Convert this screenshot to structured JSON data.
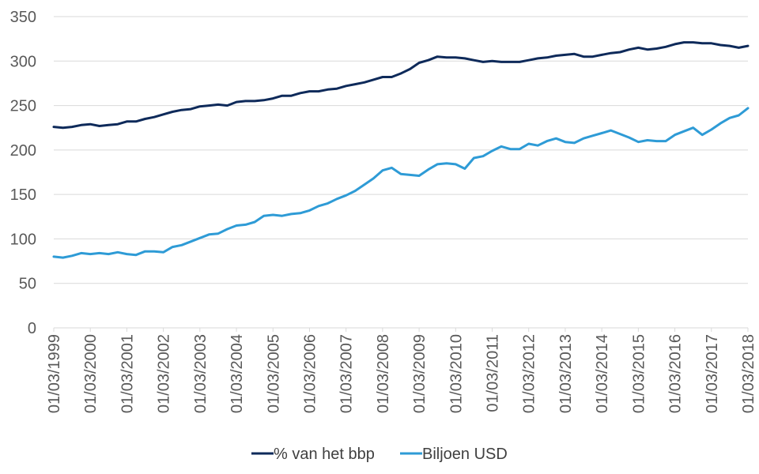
{
  "chart_data": {
    "type": "line",
    "title": "",
    "xlabel": "",
    "ylabel": "",
    "ylim": [
      0,
      350
    ],
    "yticks": [
      0,
      50,
      100,
      150,
      200,
      250,
      300,
      350
    ],
    "xticks": [
      "01/03/1999",
      "01/03/2000",
      "01/03/2001",
      "01/03/2002",
      "01/03/2003",
      "01/03/2004",
      "01/03/2005",
      "01/03/2006",
      "01/03/2007",
      "01/03/2008",
      "01/03/2009",
      "01/03/2010",
      "01/03/2011",
      "01/03/2012",
      "01/03/2013",
      "01/03/2014",
      "01/03/2015",
      "01/03/2016",
      "01/03/2017",
      "01/03/2018"
    ],
    "grid": true,
    "legend_position": "bottom",
    "x_start_year": 1999,
    "x_end_year": 2018,
    "series": [
      {
        "name": "% van het bbp",
        "color": "#0e2a5a",
        "values": [
          226,
          225,
          226,
          228,
          229,
          227,
          228,
          229,
          232,
          232,
          235,
          237,
          240,
          243,
          245,
          246,
          249,
          250,
          251,
          250,
          254,
          255,
          255,
          256,
          258,
          261,
          261,
          264,
          266,
          266,
          268,
          269,
          272,
          274,
          276,
          279,
          282,
          282,
          286,
          291,
          298,
          301,
          305,
          304,
          304,
          303,
          301,
          299,
          300,
          299,
          299,
          299,
          301,
          303,
          304,
          306,
          307,
          308,
          305,
          305,
          307,
          309,
          310,
          313,
          315,
          313,
          314,
          316,
          319,
          321,
          321,
          320,
          320,
          318,
          317,
          315,
          317
        ]
      },
      {
        "name": "Biljoen USD",
        "color": "#2e9bd6",
        "values": [
          80,
          79,
          81,
          84,
          83,
          84,
          83,
          85,
          83,
          82,
          86,
          86,
          85,
          91,
          93,
          97,
          101,
          105,
          106,
          111,
          115,
          116,
          119,
          126,
          127,
          126,
          128,
          129,
          132,
          137,
          140,
          145,
          149,
          154,
          161,
          168,
          177,
          180,
          173,
          172,
          171,
          178,
          184,
          185,
          184,
          179,
          191,
          193,
          199,
          204,
          201,
          201,
          207,
          205,
          210,
          213,
          209,
          208,
          213,
          216,
          219,
          222,
          218,
          214,
          209,
          211,
          210,
          210,
          217,
          221,
          225,
          217,
          223,
          230,
          236,
          239,
          247
        ]
      }
    ]
  }
}
